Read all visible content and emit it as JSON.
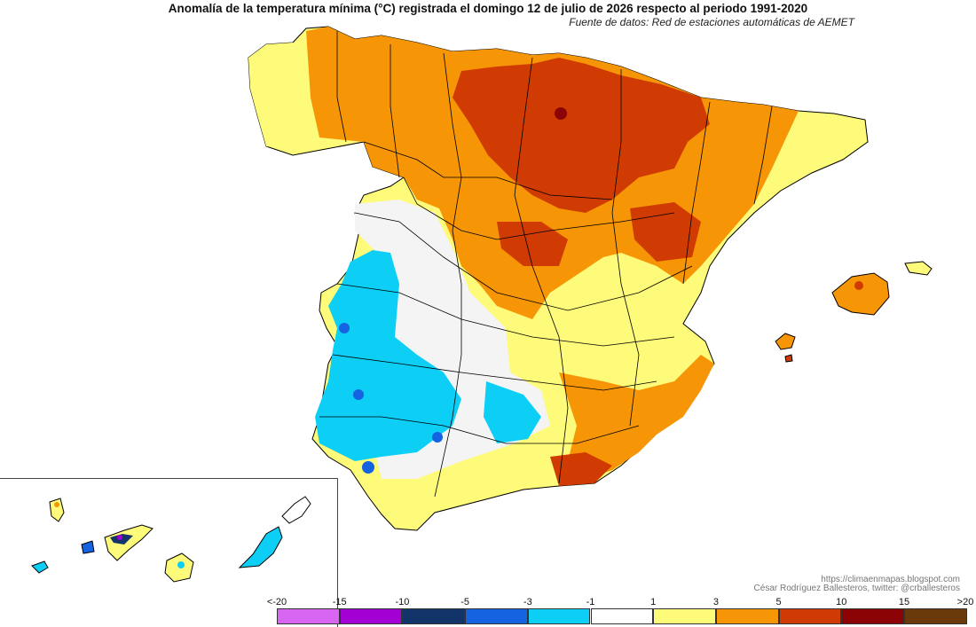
{
  "title": "Anomalía de la temperatura mínima (°C) registrada el domingo 12 de julio de 2026 respecto al periodo 1991-2020",
  "subtitle": "Fuente de datos: Red de estaciones automáticas de AEMET",
  "credits": {
    "url": "https://climaenmapas.blogspot.com",
    "author": "César Rodríguez Ballesteros, twitter: @crballesteros"
  },
  "legend": {
    "tick_labels": [
      "<-20",
      "-15",
      "-10",
      "-5",
      "-3",
      "-1",
      "1",
      "3",
      "5",
      "10",
      "15",
      ">20"
    ],
    "colors": [
      "#d966f2",
      "#a300d4",
      "#123468",
      "#1563e0",
      "#0dcff5",
      "#ffffff",
      "#fefa7a",
      "#f69506",
      "#cf3b03",
      "#8b0305",
      "#6b3a0a"
    ]
  },
  "regions": {
    "northeast_core": "#cf3b03",
    "north": "#f69506",
    "northwest_coast": "#fefa7a",
    "center_west": "#f4f4f4",
    "southwest": "#0dcff5",
    "southeast": "#fefa7a",
    "border": "#000000"
  }
}
